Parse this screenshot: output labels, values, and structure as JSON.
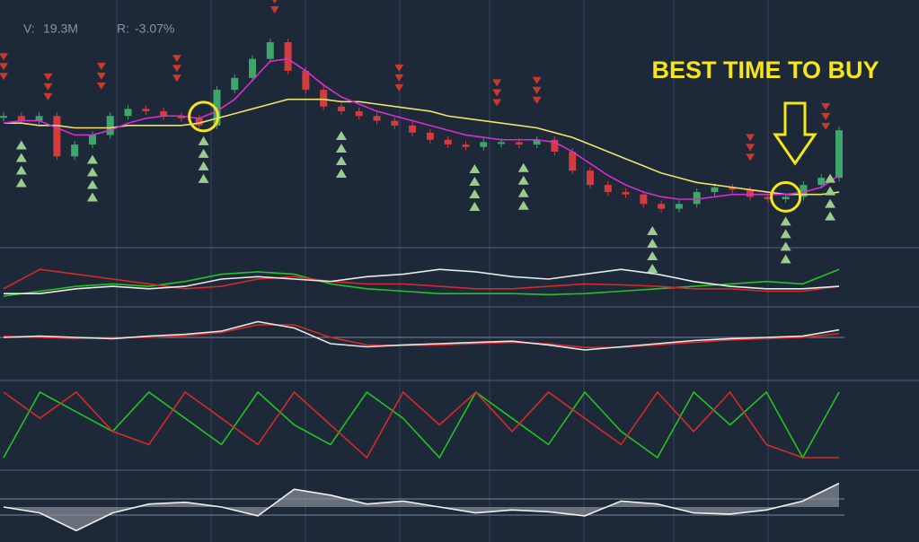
{
  "header": {
    "volume_label": "V:",
    "volume": "19.3M",
    "return_label": "R:",
    "return": "-3.07%"
  },
  "annotation": "BEST TIME TO BUY",
  "chart_data": [
    {
      "type": "line",
      "ylim": [
        0,
        100
      ],
      "up_color": "#3fa66b",
      "down_color": "#d33c3c",
      "series": [
        {
          "style": "candle",
          "values": [
            55,
            53,
            55,
            38,
            43,
            47,
            55,
            58,
            57,
            55,
            54,
            51,
            66,
            71,
            79,
            86,
            74,
            66,
            59,
            57,
            55,
            53,
            51,
            48,
            45,
            43,
            42,
            44,
            44,
            43,
            45,
            40,
            32,
            26,
            23,
            22,
            18,
            16,
            18,
            23,
            25,
            24,
            21,
            20,
            21,
            26,
            29,
            49
          ]
        },
        {
          "color": "#f0e26a",
          "values": [
            52,
            52,
            51,
            51,
            50,
            50,
            50,
            51,
            51,
            51,
            51,
            52,
            54,
            56,
            58,
            60,
            62,
            62,
            62,
            61,
            61,
            60,
            59,
            58,
            57,
            55,
            54,
            53,
            52,
            51,
            50,
            48,
            46,
            43,
            40,
            37,
            34,
            31,
            29,
            27,
            26,
            25,
            24,
            23,
            22,
            22,
            22,
            23
          ]
        },
        {
          "color": "#d62fd0",
          "values": [
            52,
            53,
            53,
            50,
            47,
            47,
            49,
            52,
            54,
            55,
            55,
            54,
            57,
            62,
            70,
            78,
            79,
            74,
            68,
            63,
            60,
            57,
            55,
            53,
            51,
            49,
            47,
            46,
            45,
            45,
            45,
            44,
            40,
            35,
            30,
            26,
            23,
            21,
            20,
            20,
            21,
            22,
            22,
            22,
            22,
            23,
            25,
            30
          ]
        }
      ],
      "sell": [
        0,
        2.5,
        5.5,
        9.75,
        15.25,
        22.25,
        27.75,
        30,
        42,
        46.25
      ],
      "buy": [
        1,
        5,
        11.25,
        19,
        26.5,
        29.25,
        36.5,
        44,
        46.5
      ],
      "highlights": [
        11.25,
        44
      ]
    },
    {
      "type": "line",
      "ylim": [
        0,
        100
      ],
      "series": [
        {
          "color": "#22c322",
          "values": [
            15,
            25,
            35,
            40,
            35,
            45,
            60,
            65,
            60,
            40,
            30,
            25,
            20,
            20,
            20,
            18,
            20,
            25,
            30,
            35,
            40,
            45,
            40,
            70
          ]
        },
        {
          "color": "#d42a2a",
          "values": [
            30,
            70,
            60,
            50,
            40,
            30,
            35,
            50,
            55,
            45,
            40,
            40,
            35,
            30,
            30,
            35,
            40,
            38,
            35,
            30,
            30,
            25,
            25,
            35
          ]
        },
        {
          "color": "#e8e8e8",
          "values": [
            20,
            20,
            30,
            35,
            30,
            35,
            50,
            55,
            50,
            45,
            55,
            60,
            70,
            65,
            55,
            50,
            60,
            70,
            60,
            45,
            35,
            30,
            30,
            35
          ]
        }
      ]
    },
    {
      "type": "line",
      "ylim": [
        0,
        100
      ],
      "series": [
        {
          "color": "#d42a2a",
          "values": [
            62,
            60,
            58,
            60,
            60,
            63,
            68,
            80,
            80,
            60,
            48,
            47,
            48,
            50,
            52,
            50,
            44,
            44,
            48,
            52,
            56,
            58,
            60,
            66
          ]
        },
        {
          "color": "#e8e8e8",
          "values": [
            60,
            62,
            60,
            58,
            62,
            65,
            70,
            85,
            75,
            50,
            45,
            48,
            50,
            52,
            54,
            48,
            40,
            45,
            50,
            55,
            58,
            60,
            62,
            72
          ]
        }
      ]
    },
    {
      "type": "line",
      "ylim": [
        0,
        100
      ],
      "series": [
        {
          "color": "#22c322",
          "values": [
            0,
            100,
            70,
            40,
            100,
            60,
            20,
            100,
            50,
            20,
            100,
            60,
            0,
            100,
            60,
            20,
            100,
            40,
            0,
            100,
            50,
            100,
            0,
            100
          ]
        },
        {
          "color": "#d42a2a",
          "values": [
            100,
            60,
            100,
            40,
            20,
            100,
            60,
            20,
            100,
            50,
            0,
            100,
            50,
            100,
            40,
            100,
            60,
            20,
            100,
            40,
            100,
            20,
            0,
            0
          ]
        }
      ]
    },
    {
      "type": "area",
      "ylim": [
        -50,
        50
      ],
      "series": [
        {
          "color": "#f0f0f0",
          "fill": "#8a8f98",
          "values": [
            0,
            -10,
            -40,
            -10,
            5,
            8,
            0,
            -15,
            30,
            20,
            5,
            10,
            0,
            -10,
            -5,
            -8,
            -15,
            10,
            5,
            -10,
            -12,
            -5,
            10,
            40
          ]
        }
      ]
    }
  ]
}
